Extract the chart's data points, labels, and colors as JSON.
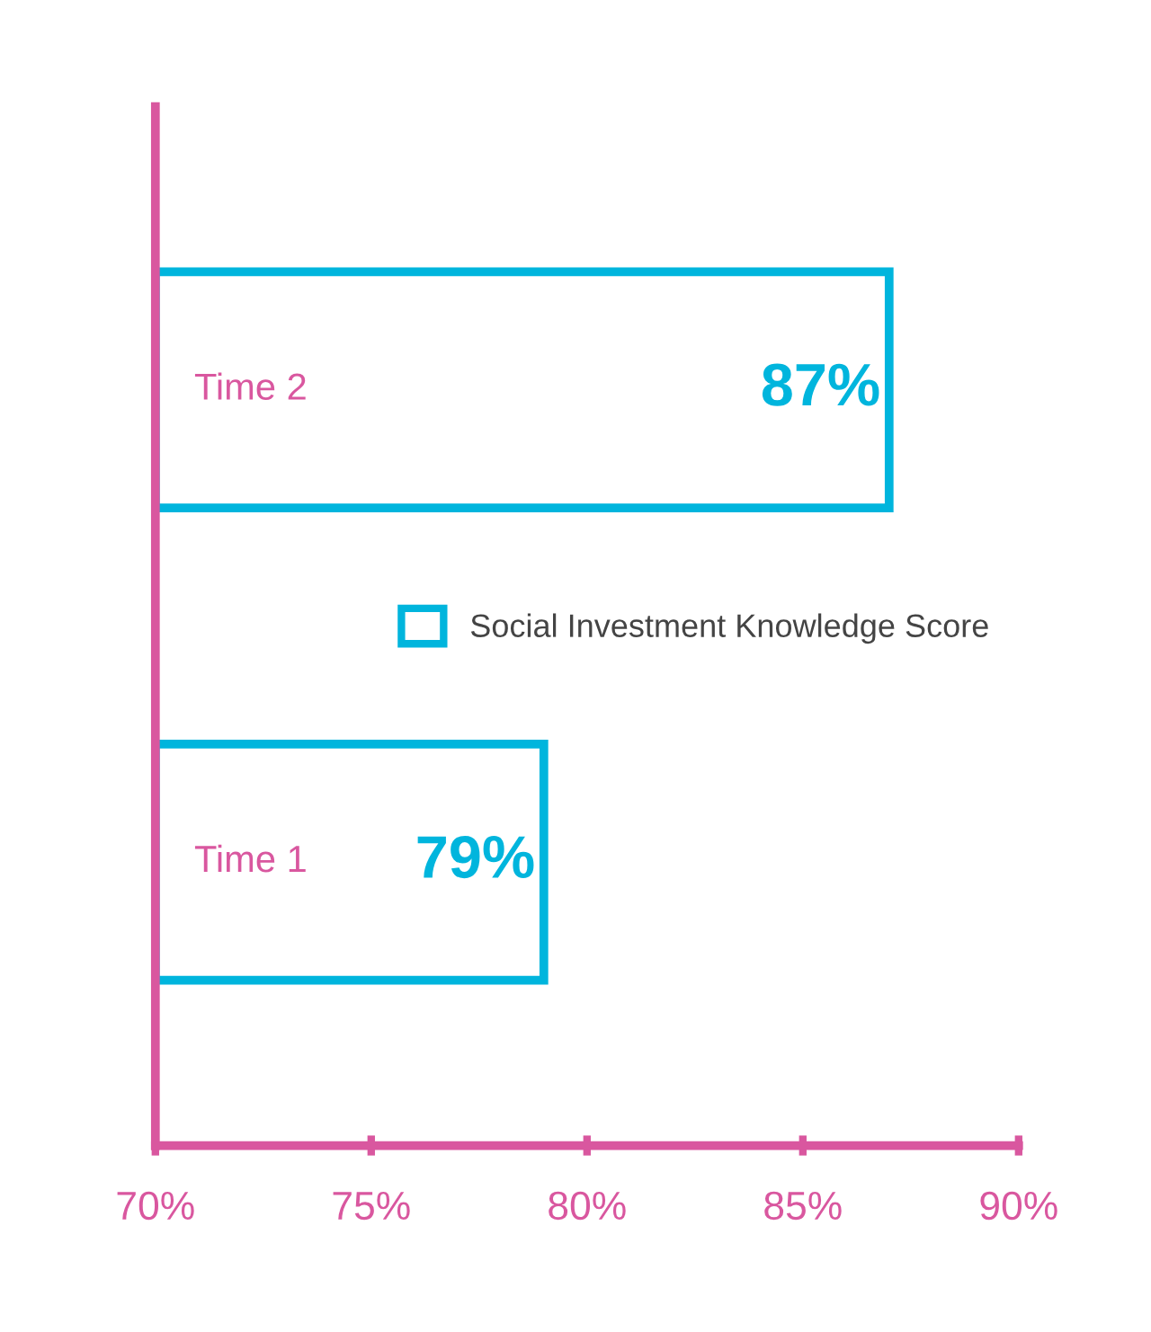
{
  "chart_data": {
    "type": "bar",
    "orientation": "horizontal",
    "categories": [
      "Time 2",
      "Time 1"
    ],
    "series": [
      {
        "name": "Social Investment Knowledge Score",
        "color": "#00b5dd",
        "values": [
          87,
          79
        ]
      }
    ],
    "xlim": [
      70,
      90
    ],
    "xticks": [
      {
        "value": 70,
        "label": "70%"
      },
      {
        "value": 75,
        "label": "75%"
      },
      {
        "value": 80,
        "label": "80%"
      },
      {
        "value": 85,
        "label": "85%"
      },
      {
        "value": 90,
        "label": "90%"
      }
    ],
    "value_labels": [
      "87%",
      "79%"
    ],
    "legend": "right",
    "grid": false
  }
}
